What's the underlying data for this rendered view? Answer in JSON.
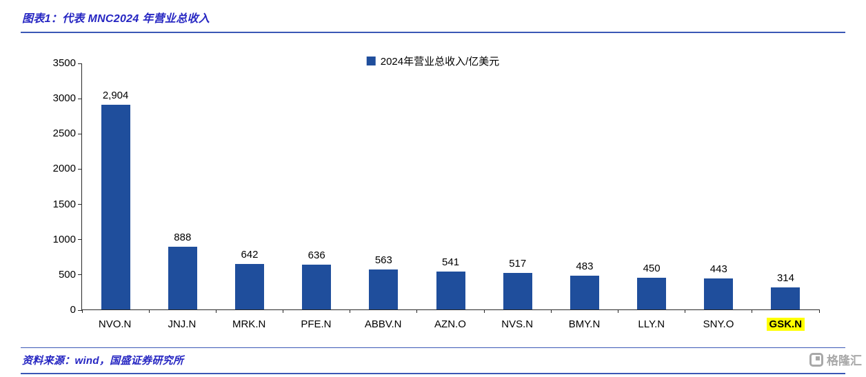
{
  "header": {
    "title": "图表1：代表 MNC2024 年营业总收入"
  },
  "chart_data": {
    "type": "bar",
    "title": "",
    "legend": "2024年营业总收入/亿美元",
    "legend_position": "top-center",
    "categories": [
      "NVO.N",
      "JNJ.N",
      "MRK.N",
      "PFE.N",
      "ABBV.N",
      "AZN.O",
      "NVS.N",
      "BMY.N",
      "LLY.N",
      "SNY.O",
      "GSK.N"
    ],
    "values": [
      2904,
      888,
      642,
      636,
      563,
      541,
      517,
      483,
      450,
      443,
      314
    ],
    "value_labels": [
      "2,904",
      "888",
      "642",
      "636",
      "563",
      "541",
      "517",
      "483",
      "450",
      "443",
      "314"
    ],
    "xlabel": "",
    "ylabel": "",
    "ylim": [
      0,
      3500
    ],
    "yticks": [
      0,
      500,
      1000,
      1500,
      2000,
      2500,
      3000,
      3500
    ],
    "grid": false,
    "highlighted_category": "GSK.N",
    "bar_color": "#1F4E9C",
    "highlight_color": "#FFFF00"
  },
  "footer": {
    "source": "资料来源：wind，国盛证券研究所",
    "watermark": "格隆汇"
  },
  "colors": {
    "accent_blue": "#2626C2",
    "line_blue": "#3A57B5",
    "bar_blue": "#1F4E9C",
    "highlight_yellow": "#FFFF00",
    "axis_black": "#262626",
    "watermark_gray": "#A8A8A8"
  }
}
